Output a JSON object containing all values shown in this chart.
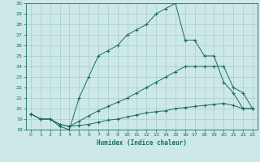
{
  "xlabel": "Humidex (Indice chaleur)",
  "xlim": [
    -0.5,
    23.5
  ],
  "ylim": [
    18,
    30
  ],
  "yticks": [
    18,
    19,
    20,
    21,
    22,
    23,
    24,
    25,
    26,
    27,
    28,
    29,
    30
  ],
  "xticks": [
    0,
    1,
    2,
    3,
    4,
    5,
    6,
    7,
    8,
    9,
    10,
    11,
    12,
    13,
    14,
    15,
    16,
    17,
    18,
    19,
    20,
    21,
    22,
    23
  ],
  "line_color": "#1a6b5f",
  "bg_color": "#cce8e8",
  "grid_color": "#aacccc",
  "lines": [
    {
      "x": [
        0,
        1,
        2,
        3,
        4,
        5,
        6,
        7,
        8,
        9,
        10,
        11,
        12,
        13,
        14,
        15,
        16,
        17,
        18,
        19,
        20,
        21,
        22,
        23
      ],
      "y": [
        19.5,
        19.0,
        19.0,
        18.3,
        18.0,
        21.0,
        23.0,
        25.0,
        25.5,
        26.0,
        27.0,
        27.5,
        28.0,
        29.0,
        29.5,
        30.0,
        26.5,
        26.5,
        25.0,
        25.0,
        22.5,
        21.5,
        20.0,
        20.0
      ]
    },
    {
      "x": [
        0,
        1,
        2,
        3,
        4,
        5,
        6,
        7,
        8,
        9,
        10,
        11,
        12,
        13,
        14,
        15,
        16,
        17,
        18,
        19,
        20,
        21,
        22,
        23
      ],
      "y": [
        19.5,
        19.0,
        19.0,
        18.5,
        18.3,
        18.8,
        19.3,
        19.8,
        20.2,
        20.6,
        21.0,
        21.5,
        22.0,
        22.5,
        23.0,
        23.5,
        24.0,
        24.0,
        24.0,
        24.0,
        24.0,
        22.0,
        21.5,
        20.0
      ]
    },
    {
      "x": [
        0,
        1,
        2,
        3,
        4,
        5,
        6,
        7,
        8,
        9,
        10,
        11,
        12,
        13,
        14,
        15,
        16,
        17,
        18,
        19,
        20,
        21,
        22,
        23
      ],
      "y": [
        19.5,
        19.0,
        19.0,
        18.5,
        18.3,
        18.4,
        18.5,
        18.7,
        18.9,
        19.0,
        19.2,
        19.4,
        19.6,
        19.7,
        19.8,
        20.0,
        20.1,
        20.2,
        20.3,
        20.4,
        20.5,
        20.3,
        20.0,
        20.0
      ]
    }
  ]
}
